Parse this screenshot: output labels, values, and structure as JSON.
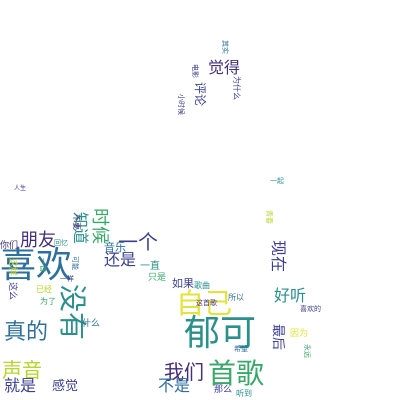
{
  "palette": {
    "navy": "#3b3f8f",
    "indigo": "#44307a",
    "blue": "#2f6f9c",
    "teal": "#2b8f8c",
    "green": "#3aa86a",
    "lime": "#b7d52d",
    "yellow": "#e3e33b",
    "purple": "#462f74"
  },
  "words": [
    {
      "text": "喜欢"
    },
    {
      "text": "郁可"
    },
    {
      "text": "自己"
    },
    {
      "text": "首歌"
    },
    {
      "text": "没有"
    },
    {
      "text": "真的"
    },
    {
      "text": "声音"
    },
    {
      "text": "我们"
    },
    {
      "text": "朋友"
    },
    {
      "text": "时候"
    },
    {
      "text": "就是"
    },
    {
      "text": "还是"
    },
    {
      "text": "不是"
    },
    {
      "text": "觉得"
    },
    {
      "text": "知道"
    },
    {
      "text": "现在"
    },
    {
      "text": "好听"
    },
    {
      "text": "一个"
    },
    {
      "text": "感觉"
    },
    {
      "text": "评论"
    },
    {
      "text": "音乐"
    },
    {
      "text": "如果"
    },
    {
      "text": "最后"
    },
    {
      "text": "一直"
    },
    {
      "text": "你们"
    },
    {
      "text": "这么"
    },
    {
      "text": "这样"
    },
    {
      "text": "什么"
    },
    {
      "text": "只是"
    },
    {
      "text": "那么"
    },
    {
      "text": "歌曲"
    },
    {
      "text": "因为"
    },
    {
      "text": "所以"
    },
    {
      "text": "为什么"
    },
    {
      "text": "为了"
    },
    {
      "text": "已经"
    },
    {
      "text": "电影"
    },
    {
      "text": "听到"
    },
    {
      "text": "不要"
    },
    {
      "text": "喜欢的"
    },
    {
      "text": "可能"
    },
    {
      "text": "一首"
    },
    {
      "text": "回忆"
    },
    {
      "text": "青春"
    },
    {
      "text": "小时候"
    },
    {
      "text": "这首歌"
    },
    {
      "text": "希望"
    },
    {
      "text": "永远"
    },
    {
      "text": "一样"
    },
    {
      "text": "一起"
    },
    {
      "text": "其实"
    },
    {
      "text": "人生"
    }
  ]
}
